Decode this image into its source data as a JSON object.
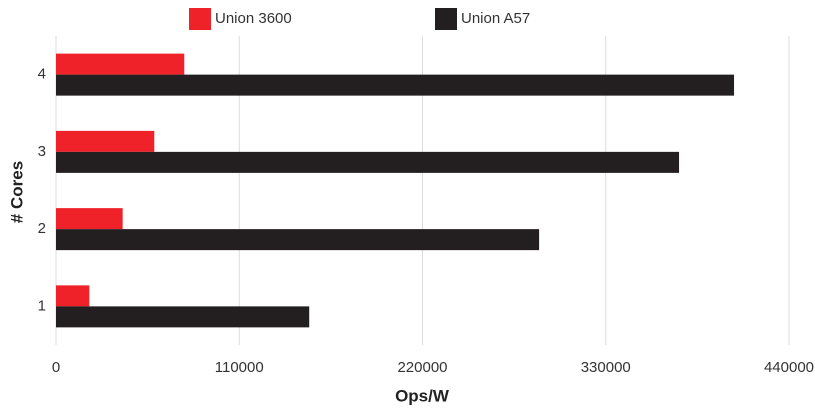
{
  "chart_data": {
    "type": "bar",
    "orientation": "horizontal",
    "categories": [
      "1",
      "2",
      "3",
      "4"
    ],
    "series": [
      {
        "name": "Union 3600",
        "color": "#ee2228",
        "values": [
          20000,
          40000,
          59000,
          77000
        ]
      },
      {
        "name": "Union A57",
        "color": "#231f20",
        "values": [
          152000,
          290000,
          374000,
          407000
        ]
      }
    ],
    "x_label": "Ops/W",
    "y_label": "# Cores",
    "xlim": [
      0,
      440000
    ],
    "xticks": [
      0,
      110000,
      220000,
      330000,
      440000
    ],
    "grid": true,
    "legend": "top"
  }
}
